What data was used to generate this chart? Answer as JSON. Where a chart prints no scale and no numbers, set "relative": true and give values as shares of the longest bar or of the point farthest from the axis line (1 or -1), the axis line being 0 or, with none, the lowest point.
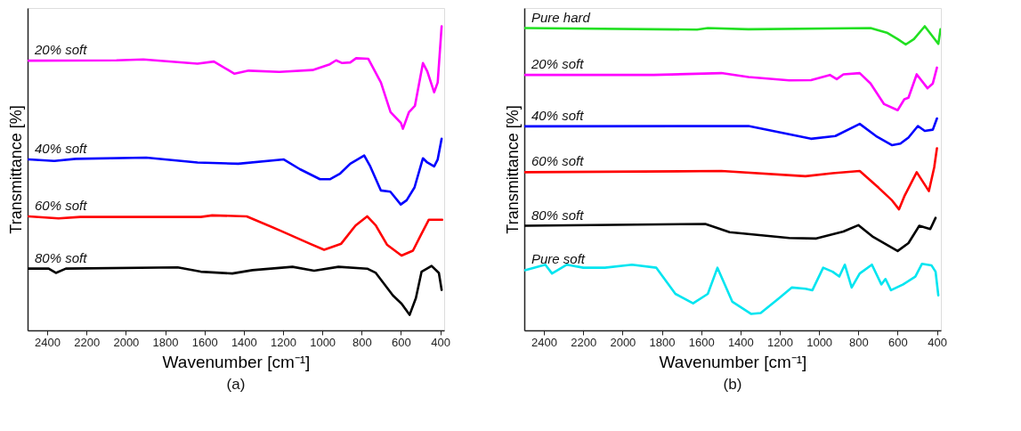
{
  "chart_data": [
    {
      "type": "line",
      "relative": true,
      "xlabel": "Wavenumber [cm⁻¹]",
      "ylabel": "Transmittance [%]",
      "annotations": [
        "(a)"
      ],
      "xlim": [
        2500,
        380
      ],
      "xticks": [
        2400,
        2200,
        2000,
        1800,
        1600,
        1400,
        1200,
        1000,
        800,
        600,
        400
      ],
      "grid": false,
      "legend": false,
      "tick_labels": "x",
      "line_style": "solid",
      "marker": "none",
      "series": [
        {
          "name": "20% soft",
          "color": "#ff00ff",
          "x": [
            2495,
            2048,
            1911,
            1635,
            1552,
            1479,
            1447,
            1375,
            1219,
            1050,
            962,
            930,
            899,
            858,
            828,
            766,
            702,
            653,
            600,
            590,
            559,
            529,
            488,
            466,
            431,
            413,
            393
          ],
          "values": [
            0.887,
            0.888,
            0.891,
            0.877,
            0.884,
            0.856,
            0.844,
            0.854,
            0.85,
            0.856,
            0.875,
            0.888,
            0.879,
            0.881,
            0.895,
            0.893,
            0.815,
            0.718,
            0.682,
            0.663,
            0.718,
            0.738,
            0.879,
            0.852,
            0.783,
            0.815,
            1.0
          ]
        },
        {
          "name": "40% soft",
          "color": "#0000ff",
          "x": [
            2495,
            2364,
            2255,
            1896,
            1635,
            1428,
            1196,
            1114,
            1012,
            962,
            909,
            858,
            787,
            756,
            702,
            654,
            601,
            571,
            531,
            488,
            466,
            431,
            413,
            393
          ],
          "values": [
            0.562,
            0.557,
            0.564,
            0.568,
            0.552,
            0.548,
            0.562,
            0.53,
            0.497,
            0.497,
            0.516,
            0.548,
            0.575,
            0.539,
            0.46,
            0.456,
            0.414,
            0.428,
            0.47,
            0.566,
            0.552,
            0.539,
            0.562,
            0.63
          ]
        },
        {
          "name": "60% soft",
          "color": "#ff0000",
          "x": [
            2495,
            2342,
            2232,
            1619,
            1561,
            1385,
            1210,
            1064,
            991,
            904,
            831,
            772,
            728,
            670,
            597,
            539,
            495,
            458,
            422,
            390
          ],
          "values": [
            0.375,
            0.368,
            0.373,
            0.373,
            0.378,
            0.375,
            0.327,
            0.285,
            0.265,
            0.285,
            0.345,
            0.375,
            0.345,
            0.281,
            0.246,
            0.262,
            0.318,
            0.364,
            0.364,
            0.364
          ]
        },
        {
          "name": "80% soft",
          "color": "#000000",
          "x": [
            2495,
            2393,
            2356,
            2305,
            1736,
            1619,
            1458,
            1356,
            1152,
            1042,
            918,
            772,
            728,
            641,
            597,
            556,
            524,
            495,
            444,
            407,
            393
          ],
          "values": [
            0.203,
            0.203,
            0.189,
            0.203,
            0.207,
            0.193,
            0.187,
            0.198,
            0.209,
            0.196,
            0.209,
            0.203,
            0.189,
            0.115,
            0.088,
            0.051,
            0.106,
            0.193,
            0.212,
            0.189,
            0.133
          ]
        }
      ]
    },
    {
      "type": "line",
      "relative": true,
      "xlabel": "Wavenumber [cm⁻¹]",
      "ylabel": "Transmittance [%]",
      "annotations": [
        "(b)"
      ],
      "xlim": [
        2500,
        380
      ],
      "xticks": [
        2400,
        2200,
        2000,
        1800,
        1600,
        1400,
        1200,
        1000,
        800,
        600,
        400
      ],
      "grid": false,
      "legend": false,
      "tick_labels": "x",
      "line_style": "solid",
      "marker": "none",
      "series": [
        {
          "name": "Pure hard",
          "color": "#22e022",
          "x": [
            2497,
            1621,
            1566,
            1359,
            738,
            655,
            600,
            559,
            517,
            462,
            393,
            382
          ],
          "values": [
            0.994,
            0.989,
            0.994,
            0.99,
            0.994,
            0.979,
            0.958,
            0.94,
            0.958,
            1.0,
            0.942,
            0.99
          ]
        },
        {
          "name": "20% soft",
          "color": "#ff00ff",
          "x": [
            2497,
            1841,
            1497,
            1359,
            1152,
            1041,
            945,
            910,
            876,
            793,
            738,
            669,
            600,
            566,
            545,
            503,
            448,
            421,
            400
          ],
          "values": [
            0.84,
            0.84,
            0.846,
            0.833,
            0.822,
            0.823,
            0.84,
            0.826,
            0.842,
            0.846,
            0.812,
            0.744,
            0.724,
            0.76,
            0.765,
            0.842,
            0.796,
            0.812,
            0.864
          ]
        },
        {
          "name": "40% soft",
          "color": "#0000ff",
          "x": [
            2497,
            1359,
            1152,
            1041,
            917,
            793,
            710,
            628,
            586,
            545,
            497,
            462,
            421,
            400
          ],
          "values": [
            0.671,
            0.672,
            0.645,
            0.63,
            0.639,
            0.679,
            0.639,
            0.609,
            0.614,
            0.634,
            0.672,
            0.656,
            0.66,
            0.697
          ]
        },
        {
          "name": "60% soft",
          "color": "#ff0000",
          "x": [
            2497,
            1497,
            1069,
            931,
            793,
            697,
            628,
            593,
            566,
            503,
            441,
            414,
            400
          ],
          "values": [
            0.52,
            0.524,
            0.507,
            0.517,
            0.524,
            0.469,
            0.427,
            0.398,
            0.441,
            0.52,
            0.458,
            0.536,
            0.599
          ]
        },
        {
          "name": "80% soft",
          "color": "#000000",
          "x": [
            2497,
            1579,
            1455,
            1152,
            1014,
            876,
            800,
            724,
            600,
            545,
            490,
            434,
            407
          ],
          "values": [
            0.344,
            0.35,
            0.323,
            0.304,
            0.302,
            0.325,
            0.346,
            0.307,
            0.261,
            0.287,
            0.344,
            0.333,
            0.37
          ]
        },
        {
          "name": "Pure soft",
          "color": "#00e5f0",
          "x": [
            2497,
            2393,
            2359,
            2283,
            2200,
            2090,
            1952,
            1828,
            1731,
            1641,
            1566,
            1517,
            1441,
            1345,
            1297,
            1207,
            1138,
            1069,
            1034,
            979,
            931,
            897,
            869,
            834,
            793,
            731,
            683,
            662,
            634,
            572,
            510,
            476,
            428,
            407,
            393
          ],
          "values": [
            0.198,
            0.216,
            0.187,
            0.216,
            0.206,
            0.206,
            0.216,
            0.206,
            0.12,
            0.089,
            0.12,
            0.206,
            0.094,
            0.054,
            0.057,
            0.104,
            0.141,
            0.137,
            0.132,
            0.206,
            0.193,
            0.177,
            0.216,
            0.141,
            0.187,
            0.216,
            0.151,
            0.169,
            0.132,
            0.151,
            0.177,
            0.219,
            0.214,
            0.193,
            0.115
          ]
        }
      ]
    }
  ]
}
